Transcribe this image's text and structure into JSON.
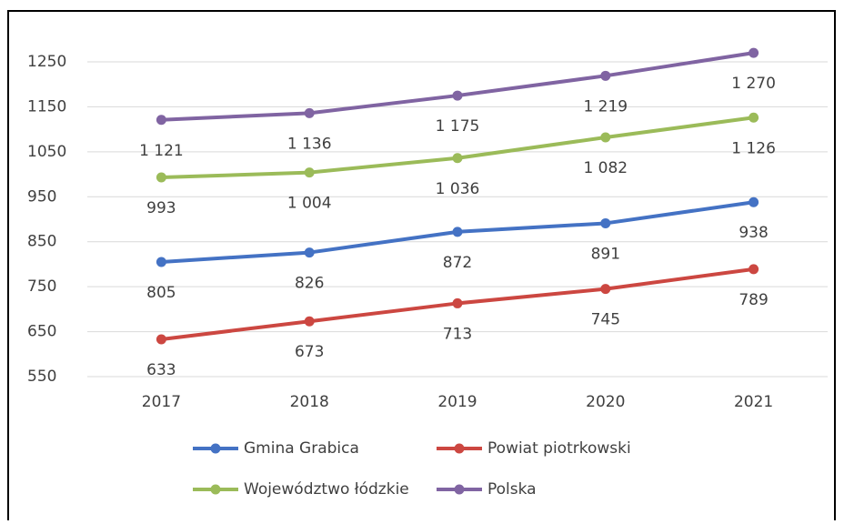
{
  "chart_data": {
    "type": "line",
    "categories": [
      "2017",
      "2018",
      "2019",
      "2020",
      "2021"
    ],
    "series": [
      {
        "name": "Gmina Grabica",
        "color": "#4472c4",
        "values": [
          805,
          826,
          872,
          891,
          938
        ],
        "value_labels": [
          "805",
          "826",
          "872",
          "891",
          "938"
        ]
      },
      {
        "name": "Powiat piotrkowski",
        "color": "#cc4741",
        "values": [
          633,
          673,
          713,
          745,
          789
        ],
        "value_labels": [
          "633",
          "673",
          "713",
          "745",
          "789"
        ]
      },
      {
        "name": "Województwo łódzkie",
        "color": "#9bbb59",
        "values": [
          993,
          1004,
          1036,
          1082,
          1126
        ],
        "value_labels": [
          "993",
          "1 004",
          "1 036",
          "1 082",
          "1 126"
        ]
      },
      {
        "name": "Polska",
        "color": "#8064a2",
        "values": [
          1121,
          1136,
          1175,
          1219,
          1270
        ],
        "value_labels": [
          "1 121",
          "1 136",
          "1 175",
          "1 219",
          "1 270"
        ]
      }
    ],
    "ylim": [
      550,
      1250
    ],
    "yticks": [
      550,
      650,
      750,
      850,
      950,
      1050,
      1150,
      1250
    ],
    "grid": true
  }
}
